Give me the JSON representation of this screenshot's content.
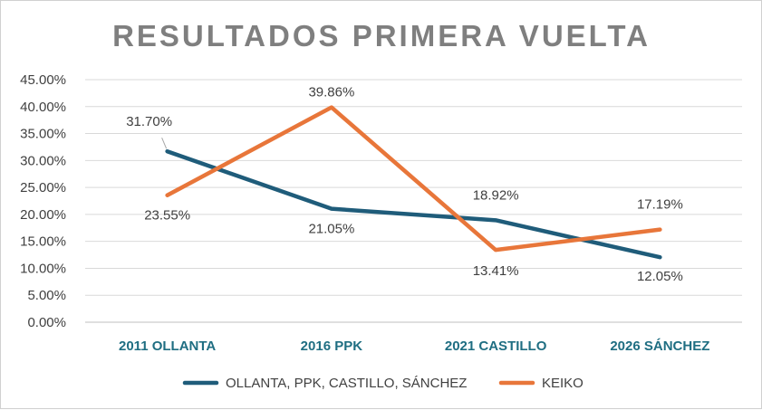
{
  "chart_data": {
    "type": "line",
    "title": "RESULTADOS PRIMERA VUELTA",
    "categories": [
      "2011 OLLANTA",
      "2016 PPK",
      "2021 CASTILLO",
      "2026 SÁNCHEZ"
    ],
    "series": [
      {
        "name": "OLLANTA, PPK, CASTILLO, SÁNCHEZ",
        "color": "#1f5c7a",
        "values": [
          31.7,
          21.05,
          18.92,
          12.05
        ],
        "labels": [
          "31.70%",
          "21.05%",
          "18.92%",
          "12.05%"
        ]
      },
      {
        "name": "KEIKO",
        "color": "#e8763a",
        "values": [
          23.55,
          39.86,
          13.41,
          17.19
        ],
        "labels": [
          "23.55%",
          "39.86%",
          "13.41%",
          "17.19%"
        ]
      }
    ],
    "ylim": [
      0,
      45
    ],
    "yticks": [
      "0.00%",
      "5.00%",
      "10.00%",
      "15.00%",
      "20.00%",
      "25.00%",
      "30.00%",
      "35.00%",
      "40.00%",
      "45.00%"
    ],
    "grid": true,
    "legend": "bottom"
  }
}
